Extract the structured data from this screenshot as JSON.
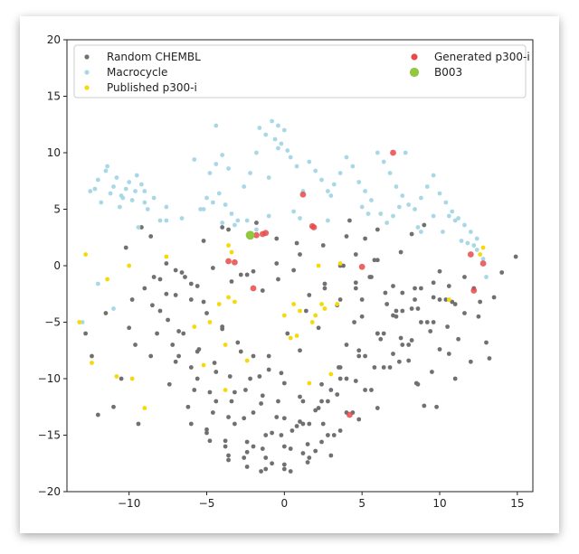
{
  "chart_data": {
    "type": "scatter",
    "title": "",
    "xlabel": "",
    "ylabel": "",
    "xlim": [
      -14,
      16
    ],
    "ylim": [
      -20,
      20
    ],
    "xticks": [
      -10,
      -5,
      0,
      5,
      10,
      15
    ],
    "yticks": [
      -20,
      -15,
      -10,
      -5,
      0,
      5,
      10,
      15,
      20
    ],
    "xtick_labels": [
      "−10",
      "−5",
      "0",
      "5",
      "10",
      "15"
    ],
    "ytick_labels": [
      "−20",
      "−15",
      "−10",
      "−5",
      "0",
      "5",
      "10",
      "15",
      "20"
    ],
    "grid": false,
    "legend_position": "top",
    "series": [
      {
        "name": "Random CHEMBL",
        "color": "#707070",
        "marker_size": 4,
        "x": [
          -9.0,
          -8.5,
          -8.0,
          -7.5,
          -7.0,
          -6.5,
          -6.0,
          -5.5,
          -5.0,
          -4.5,
          -4.0,
          -3.5,
          -3.0,
          -2.5,
          -2.0,
          -1.5,
          -1.0,
          -0.5,
          0.0,
          0.5,
          1.0,
          1.5,
          2.0,
          2.5,
          3.0,
          3.5,
          4.0,
          4.5,
          5.0,
          5.5,
          6.0,
          6.5,
          7.0,
          7.5,
          8.0,
          8.5,
          9.0,
          9.5,
          10.0,
          10.5,
          11.0,
          -8.6,
          -7.4,
          -6.2,
          -5.0,
          -3.8,
          -2.6,
          -1.4,
          -0.2,
          1.0,
          2.2,
          3.4,
          4.6,
          5.8,
          7.0,
          8.2,
          9.4,
          10.6,
          -8.2,
          -7.0,
          -5.8,
          -4.6,
          -3.4,
          -2.2,
          -1.0,
          0.2,
          1.4,
          2.6,
          3.8,
          5.0,
          6.2,
          7.4,
          8.6,
          9.8,
          11.0,
          -8.0,
          -6.8,
          -5.6,
          -4.4,
          -3.2,
          -2.0,
          -0.8,
          0.4,
          1.6,
          2.8,
          4.0,
          5.2,
          6.4,
          7.6,
          8.8,
          10.0,
          11.2,
          12.0,
          -7.6,
          -6.4,
          -5.2,
          -4.0,
          -2.8,
          -1.6,
          -0.4,
          0.8,
          2.0,
          3.2,
          4.4,
          5.6,
          6.8,
          8.0,
          9.2,
          10.4,
          11.6,
          -7.2,
          -6.0,
          -4.8,
          -3.6,
          -2.4,
          -1.2,
          0.0,
          1.2,
          2.4,
          3.6,
          4.8,
          6.0,
          7.2,
          8.4,
          9.6,
          10.8,
          -6.8,
          -5.6,
          -4.4,
          -3.2,
          -2.0,
          -0.8,
          0.4,
          1.6,
          2.8,
          4.0,
          5.2,
          6.4,
          7.6,
          8.8,
          10.0,
          -6.0,
          -4.8,
          -3.6,
          -2.4,
          -1.2,
          0.0,
          1.2,
          2.4,
          3.6,
          4.8,
          6.0,
          7.2,
          8.4,
          9.6,
          -5.0,
          -3.8,
          -2.6,
          -1.4,
          -0.2,
          1.0,
          2.2,
          3.4,
          4.6,
          5.8,
          7.0,
          8.2,
          -3.6,
          -2.4,
          -1.2,
          0.0,
          1.2,
          2.4,
          3.6,
          4.8,
          6.0,
          -1.5,
          0.0,
          1.5,
          3.0,
          -2.0,
          -0.5,
          1.0,
          2.5,
          4.0,
          -12.4,
          -10.5,
          -11.0,
          -9.4,
          -12.0,
          -10.0,
          -9.6,
          -12.8,
          -11.5,
          -9.8,
          12.5,
          13.0,
          13.5,
          14.0,
          14.9,
          12.2,
          13.2,
          8.2,
          9.0,
          7.5,
          4.2,
          4.6,
          5.2,
          6.0,
          3.6,
          -2.8,
          -3.6,
          -1.8,
          -0.5,
          0.8,
          -4.0,
          -5.2,
          -6.0,
          -7.0,
          -8.4,
          -9.2,
          -10.2,
          -8.6,
          -7.6,
          -6.6,
          -5.6,
          -4.6,
          -3.4,
          -2.4,
          -1.4,
          -0.4,
          0.6,
          1.6,
          2.6,
          3.6,
          4.6,
          5.6,
          6.6,
          7.6,
          8.6,
          9.6,
          10.6,
          11.6,
          12.6
        ],
        "y": [
          -2.0,
          -3.5,
          -1.2,
          -4.8,
          -2.6,
          -6.0,
          -3.0,
          -7.4,
          -4.2,
          -8.6,
          -5.6,
          -9.8,
          -6.8,
          -11.0,
          -8.0,
          -12.2,
          -9.2,
          -13.4,
          -10.4,
          -14.6,
          -11.6,
          -15.8,
          -12.8,
          -14.0,
          -11.0,
          -9.0,
          -7.0,
          -5.0,
          -3.0,
          -1.0,
          0.5,
          -2.4,
          -4.4,
          -6.4,
          -8.4,
          -10.4,
          -12.4,
          -9.4,
          -7.4,
          -5.4,
          -3.4,
          -8.0,
          -10.5,
          -12.5,
          -14.5,
          -15.5,
          -13.5,
          -11.5,
          -9.5,
          -7.5,
          -5.5,
          -3.5,
          -1.5,
          0.5,
          -1.8,
          -3.8,
          -5.8,
          -7.8,
          -6.0,
          -8.5,
          -11.0,
          -13.0,
          -12.0,
          -10.0,
          -8.0,
          -6.0,
          -4.0,
          -2.0,
          0.0,
          -4.5,
          -6.5,
          -8.5,
          -10.5,
          -12.5,
          -10.0,
          -4.0,
          -5.8,
          -7.6,
          -9.4,
          -11.2,
          -13.0,
          -14.8,
          -16.2,
          -14.0,
          -12.0,
          -10.0,
          -8.0,
          -6.0,
          -4.0,
          -2.0,
          -0.5,
          -6.5,
          -8.5,
          -2.5,
          -1.0,
          -3.2,
          -5.4,
          -7.6,
          -9.8,
          -12.0,
          -14.2,
          -16.4,
          -15.0,
          -13.0,
          -11.0,
          -9.0,
          -7.0,
          -5.0,
          -3.0,
          -1.0,
          -7.0,
          -9.0,
          -11.2,
          -13.4,
          -15.6,
          -17.0,
          -16.0,
          -14.0,
          -12.0,
          -10.0,
          -8.0,
          -6.0,
          -4.0,
          -2.0,
          -5.0,
          -3.2,
          -8.0,
          -10.0,
          -12.0,
          -14.0,
          -16.0,
          -17.5,
          -18.2,
          -17.0,
          -15.0,
          -13.0,
          -11.0,
          -9.0,
          -7.0,
          -5.0,
          -3.0,
          -14.0,
          -15.5,
          -17.2,
          -16.5,
          -15.0,
          -13.5,
          -12.0,
          -10.5,
          -9.0,
          -7.5,
          -6.0,
          -4.5,
          -3.0,
          -1.5,
          -14.8,
          -16.0,
          -17.0,
          -16.2,
          -15.0,
          -13.8,
          -12.6,
          -11.4,
          -10.2,
          -9.0,
          -7.8,
          -6.6,
          -16.8,
          -17.8,
          -18.0,
          -17.6,
          -16.6,
          -15.6,
          -14.6,
          -13.6,
          -12.6,
          -18.2,
          -18.0,
          -17.4,
          -16.8,
          -0.5,
          0.2,
          1.0,
          1.8,
          2.6,
          -8.0,
          -10.0,
          -12.5,
          -14.0,
          -13.2,
          -5.5,
          -7.0,
          -6.0,
          -4.2,
          -3.0,
          -4.5,
          -6.8,
          -2.8,
          -0.6,
          0.8,
          -2.0,
          -8.2,
          2.8,
          3.6,
          1.2,
          4.0,
          1.0,
          2.4,
          3.2,
          0.0,
          -0.8,
          3.2,
          3.8,
          2.4,
          2.0,
          3.4,
          2.2,
          -1.6,
          -0.4,
          -1.0,
          3.4,
          1.6,
          2.6,
          0.2,
          -0.6,
          -1.8,
          -0.2,
          -1.4,
          -0.8,
          -2.2,
          -1.2,
          -0.4,
          -2.6,
          -1.6,
          -3.0,
          -2.0,
          -1.0,
          -3.4,
          -2.4,
          -3.8,
          -2.8,
          -1.8,
          -4.2,
          -3.2
        ]
      },
      {
        "name": "Macrocycle",
        "color": "#a8d8e6",
        "marker_size": 4,
        "x": [
          -12.5,
          -12.0,
          -11.5,
          -11.0,
          -10.5,
          -10.0,
          -9.5,
          -9.0,
          -11.8,
          -11.2,
          -10.6,
          -10.2,
          -9.8,
          -9.2,
          -8.8,
          -11.4,
          -10.8,
          -10.4,
          -9.6,
          -9.0,
          -12.2,
          -8.4,
          -7.6,
          -5.0,
          -4.6,
          -4.2,
          -3.8,
          -3.4,
          -4.8,
          -4.4,
          -4.0,
          -3.6,
          -5.2,
          -0.8,
          -0.4,
          0.0,
          -1.2,
          -1.6,
          -0.6,
          -0.2,
          0.4,
          0.8,
          -1.0,
          -2.2,
          -2.6,
          -1.8,
          1.2,
          1.6,
          2.0,
          2.4,
          2.8,
          3.2,
          3.6,
          4.0,
          4.4,
          4.8,
          5.2,
          5.6,
          6.0,
          6.4,
          6.8,
          7.2,
          7.6,
          8.0,
          8.4,
          8.8,
          9.2,
          9.6,
          10.0,
          10.4,
          10.8,
          11.2,
          11.6,
          12.0,
          12.4,
          5.4,
          6.6,
          7.0,
          7.4,
          8.6,
          10.2,
          11.0,
          11.8,
          12.4,
          12.8,
          13.0,
          -12.0,
          -13.0,
          -11.0,
          -7.6,
          -6.6,
          -5.4,
          -3.0,
          -1.0,
          1.0,
          2.8,
          5.0,
          8.8,
          10.6,
          12.2,
          -8.0,
          -9.4,
          -4.4,
          0.6,
          6.2,
          9.6,
          11.4,
          -3.2,
          -5.8,
          -2.4,
          -1.8,
          -4.0,
          -0.4,
          0.2,
          3.0,
          7.8
        ],
        "y": [
          6.6,
          7.6,
          8.4,
          7.0,
          6.2,
          7.4,
          8.0,
          6.6,
          5.6,
          6.4,
          5.2,
          6.8,
          5.8,
          7.2,
          5.0,
          8.8,
          7.8,
          6.0,
          6.6,
          5.6,
          6.8,
          6.0,
          5.2,
          6.0,
          5.6,
          6.4,
          5.4,
          4.6,
          8.2,
          9.0,
          9.8,
          8.6,
          5.0,
          12.8,
          12.4,
          12.0,
          11.6,
          12.2,
          11.2,
          10.8,
          9.6,
          8.8,
          7.8,
          8.2,
          7.0,
          10.0,
          6.6,
          9.2,
          8.4,
          7.6,
          6.6,
          7.2,
          8.2,
          9.6,
          8.8,
          7.4,
          6.6,
          5.8,
          10.0,
          9.2,
          8.2,
          7.0,
          6.2,
          5.4,
          5.0,
          6.0,
          7.0,
          8.0,
          6.4,
          5.6,
          4.8,
          4.2,
          3.6,
          3.0,
          2.4,
          4.6,
          3.8,
          4.4,
          5.2,
          3.4,
          3.0,
          4.0,
          2.0,
          1.4,
          0.6,
          -1.0,
          -1.6,
          -5.0,
          -3.8,
          4.0,
          4.2,
          5.0,
          4.0,
          4.4,
          4.2,
          4.0,
          5.2,
          3.0,
          4.4,
          1.8,
          4.0,
          3.4,
          12.4,
          4.8,
          4.6,
          4.4,
          2.2,
          3.6,
          9.4,
          4.0,
          3.2,
          3.8,
          10.4,
          10.2,
          6.2,
          10.0
        ]
      },
      {
        "name": "Published p300-i",
        "color": "#f5d90a",
        "marker_size": 4,
        "x": [
          -12.8,
          -13.2,
          -12.4,
          -10.0,
          -9.8,
          -9.0,
          -7.6,
          -5.8,
          -5.2,
          -4.8,
          -4.2,
          -3.8,
          -3.6,
          -3.4,
          -2.4,
          0.0,
          0.4,
          0.8,
          1.0,
          1.6,
          2.0,
          2.4,
          2.6,
          3.0,
          3.4,
          3.6,
          -11.4,
          -10.8,
          12.8,
          12.6,
          10.6,
          -3.8,
          -3.2,
          -3.6,
          0.6,
          1.8,
          2.2
        ],
        "y": [
          1.0,
          -5.0,
          -8.6,
          0.0,
          -10.0,
          -12.6,
          0.8,
          -5.4,
          -8.8,
          -5.0,
          -3.4,
          -11.0,
          1.8,
          1.2,
          -8.4,
          -4.4,
          -6.4,
          -6.2,
          -4.0,
          -10.4,
          -4.4,
          -3.4,
          -3.8,
          -9.6,
          -3.4,
          0.2,
          -1.2,
          -9.8,
          1.6,
          1.0,
          -3.0,
          -7.0,
          -3.2,
          -2.8,
          -3.4,
          -5.0,
          0.0
        ]
      },
      {
        "name": "Generated p300-i",
        "color": "#e84a4a",
        "marker_size": 6,
        "x": [
          -1.2,
          -1.4,
          1.2,
          1.8,
          1.9,
          7.0,
          -2.0,
          -3.6,
          5.0,
          12.0,
          12.2,
          12.8,
          -3.2,
          4.2,
          -1.8
        ],
        "y": [
          2.9,
          2.8,
          6.3,
          3.5,
          3.4,
          10.0,
          -2.0,
          0.4,
          -0.1,
          1.0,
          -2.2,
          0.2,
          0.3,
          -13.2,
          2.7
        ]
      },
      {
        "name": "B003",
        "color": "#92c83e",
        "marker_size": 9,
        "x": [
          -2.2
        ],
        "y": [
          2.7
        ]
      }
    ]
  }
}
